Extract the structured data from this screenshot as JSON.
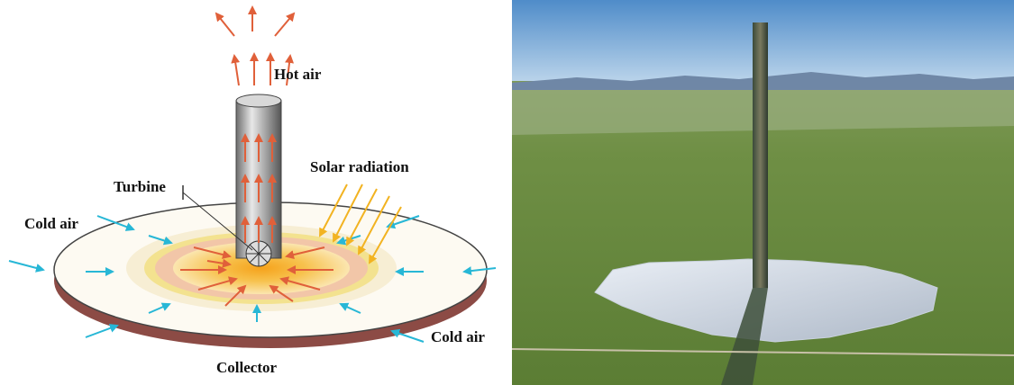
{
  "diagram": {
    "labels": [
      "Hot air",
      "Solar radiation",
      "Turbine",
      "Cold air",
      "Cold air",
      "Collector"
    ]
  }
}
